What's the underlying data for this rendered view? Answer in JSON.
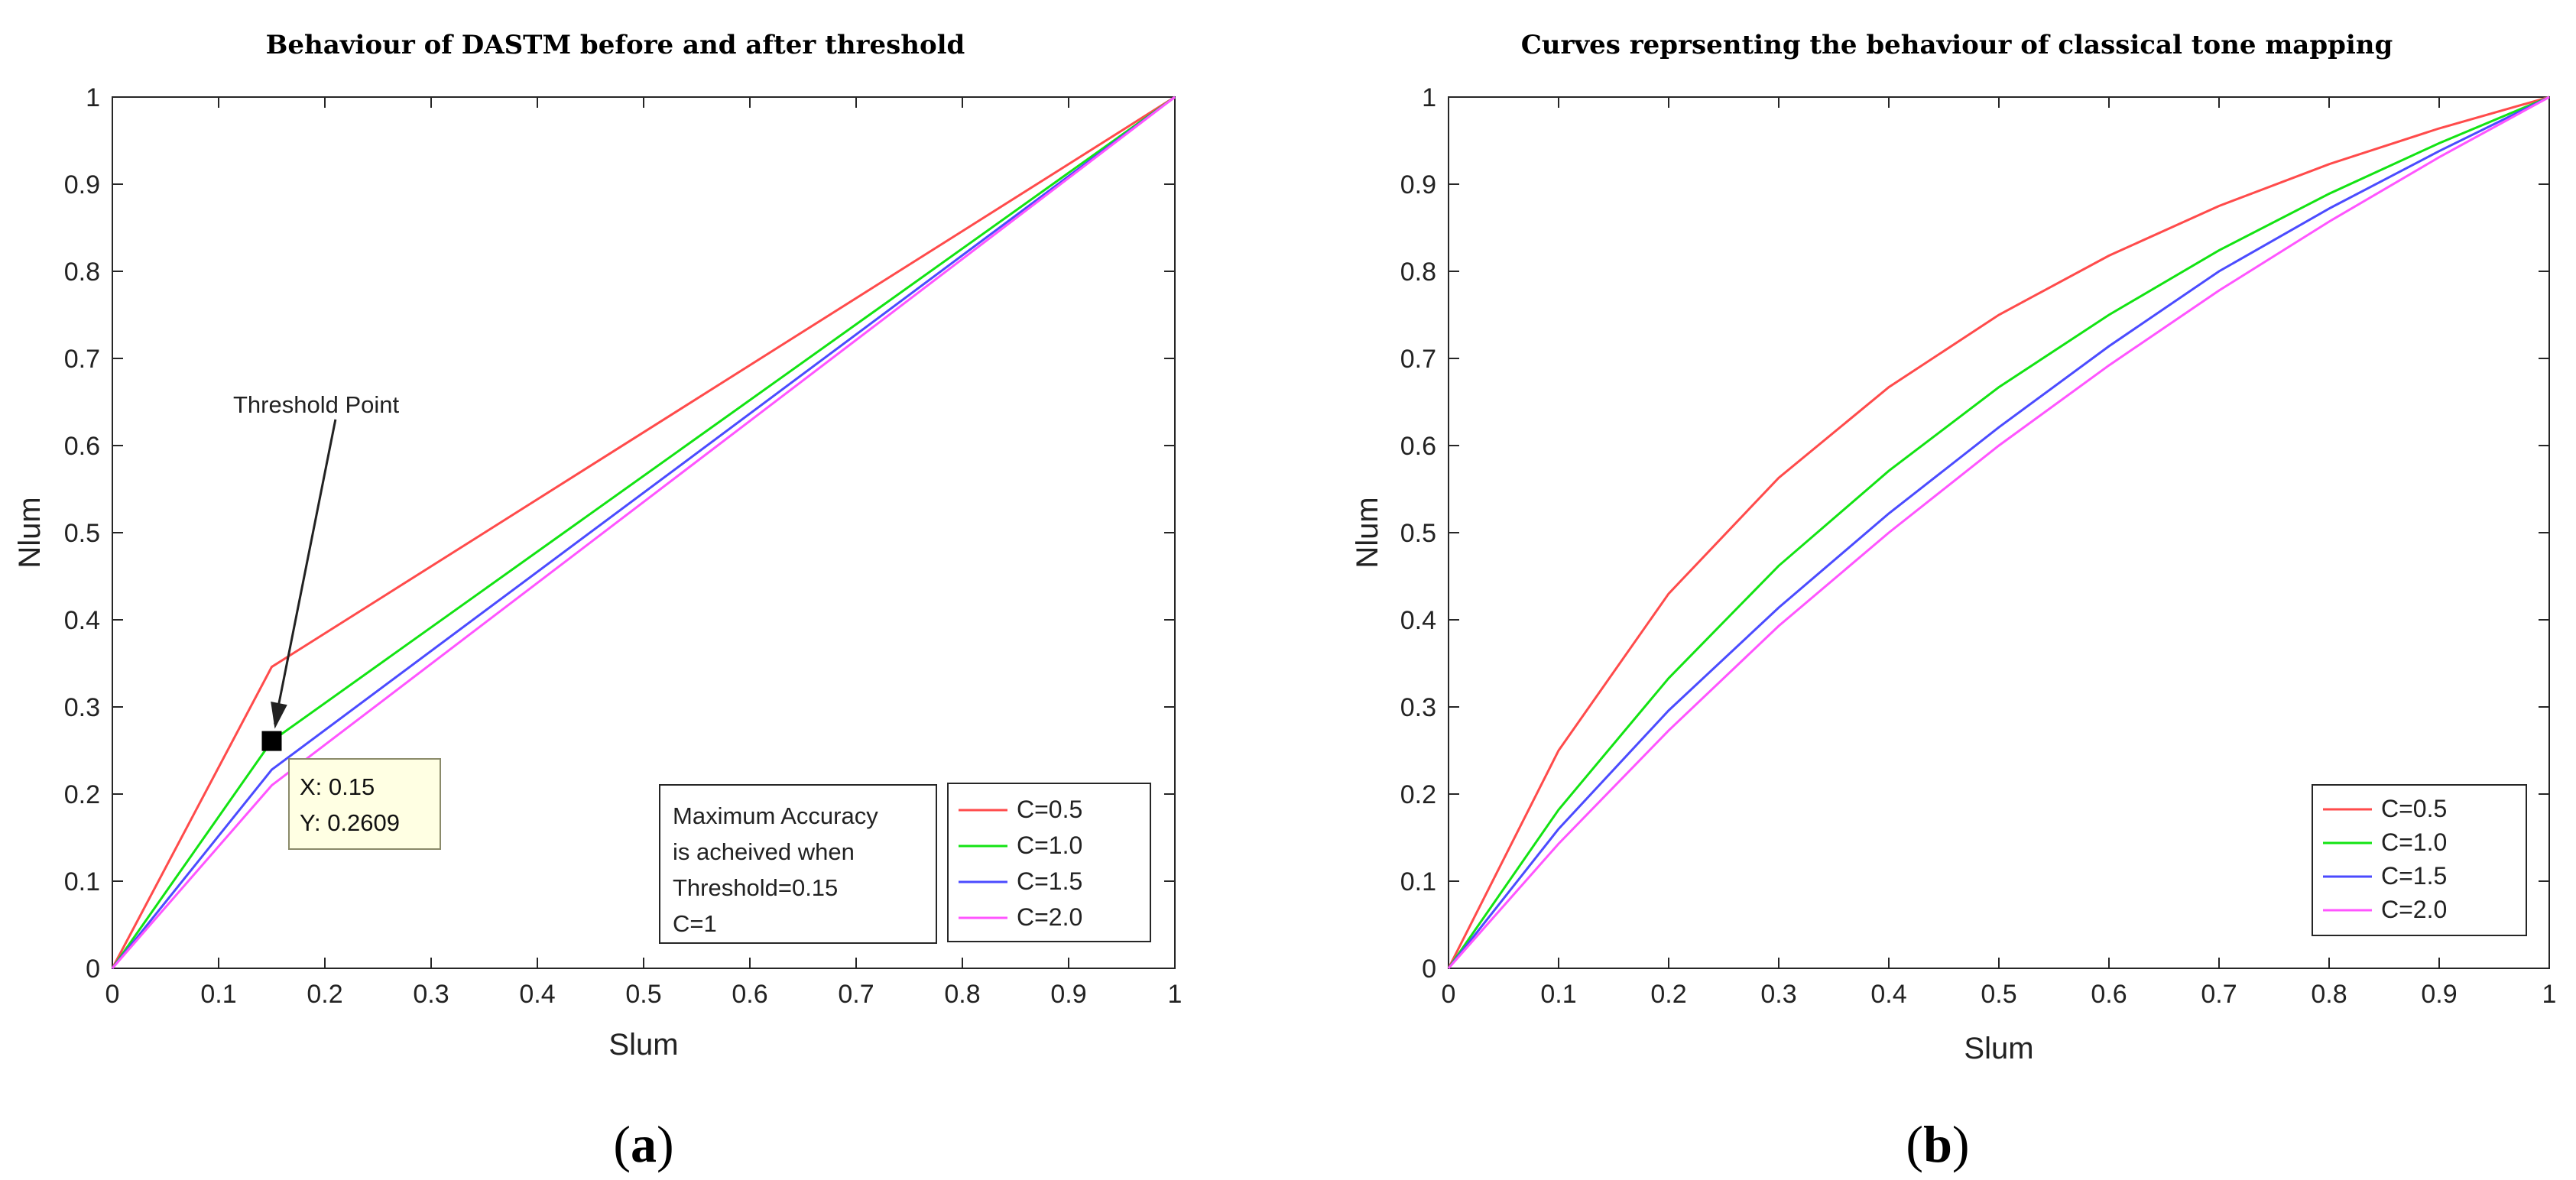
{
  "colors": {
    "series": [
      "#ff4b4b",
      "#13e313",
      "#4b4bff",
      "#ff55ff"
    ],
    "tooltip_bg": "#ffffe3",
    "axis": "#262626",
    "grid_tick": "#262626"
  },
  "panels": [
    {
      "caption_open": "(",
      "caption_letter": "a",
      "caption_close": ")"
    },
    {
      "caption_open": "(",
      "caption_letter": "b",
      "caption_close": ")"
    }
  ],
  "chart_data": [
    {
      "type": "line",
      "title": "Behaviour of DASTM before and after threshold",
      "xlabel": "Slum",
      "ylabel": "Nlum",
      "xlim": [
        0,
        1
      ],
      "ylim": [
        0,
        1
      ],
      "xticks": [
        "0",
        "0.1",
        "0.2",
        "0.3",
        "0.4",
        "0.5",
        "0.6",
        "0.7",
        "0.8",
        "0.9",
        "1"
      ],
      "yticks": [
        "0",
        "0.1",
        "0.2",
        "0.3",
        "0.4",
        "0.5",
        "0.6",
        "0.7",
        "0.8",
        "0.9",
        "1"
      ],
      "legend_position": "bottom-right",
      "series": [
        {
          "name": "C=0.5",
          "x": [
            0,
            0.15,
            1
          ],
          "y": [
            0,
            0.346,
            1
          ]
        },
        {
          "name": "C=1.0",
          "x": [
            0,
            0.15,
            1
          ],
          "y": [
            0,
            0.2609,
            1
          ]
        },
        {
          "name": "C=1.5",
          "x": [
            0,
            0.15,
            1
          ],
          "y": [
            0,
            0.228,
            1
          ]
        },
        {
          "name": "C=2.0",
          "x": [
            0,
            0.15,
            1
          ],
          "y": [
            0,
            0.21,
            1
          ]
        }
      ],
      "annotations": {
        "arrow_label": "Threshold Point",
        "arrow_from": [
          0.21,
          0.63
        ],
        "arrow_to": [
          0.15,
          0.2609
        ],
        "marker": {
          "x": 0.15,
          "y": 0.2609
        },
        "datatip_x": "X: 0.15",
        "datatip_y": "Y: 0.2609",
        "note_lines": [
          "Maximum Accuracy",
          "is acheived when",
          "Threshold=0.15",
          "C=1"
        ]
      }
    },
    {
      "type": "line",
      "title": "Curves reprsenting the behaviour of classical tone mapping",
      "xlabel": "Slum",
      "ylabel": "Nlum",
      "xlim": [
        0,
        1
      ],
      "ylim": [
        0,
        1
      ],
      "xticks": [
        "0",
        "0.1",
        "0.2",
        "0.3",
        "0.4",
        "0.5",
        "0.6",
        "0.7",
        "0.8",
        "0.9",
        "1"
      ],
      "yticks": [
        "0",
        "0.1",
        "0.2",
        "0.3",
        "0.4",
        "0.5",
        "0.6",
        "0.7",
        "0.8",
        "0.9",
        "1"
      ],
      "legend_position": "bottom-right",
      "series": [
        {
          "name": "C=0.5",
          "x": [
            0,
            0.1,
            0.2,
            0.3,
            0.4,
            0.5,
            0.6,
            0.7,
            0.8,
            0.9,
            1
          ],
          "y": [
            0,
            0.25,
            0.43,
            0.563,
            0.667,
            0.75,
            0.818,
            0.875,
            0.923,
            0.964,
            1
          ]
        },
        {
          "name": "C=1.0",
          "x": [
            0,
            0.1,
            0.2,
            0.3,
            0.4,
            0.5,
            0.6,
            0.7,
            0.8,
            0.9,
            1
          ],
          "y": [
            0,
            0.182,
            0.333,
            0.462,
            0.571,
            0.667,
            0.75,
            0.824,
            0.889,
            0.947,
            1
          ]
        },
        {
          "name": "C=1.5",
          "x": [
            0,
            0.1,
            0.2,
            0.3,
            0.4,
            0.5,
            0.6,
            0.7,
            0.8,
            0.9,
            1
          ],
          "y": [
            0,
            0.16,
            0.296,
            0.414,
            0.522,
            0.621,
            0.714,
            0.8,
            0.872,
            0.938,
            1
          ]
        },
        {
          "name": "C=2.0",
          "x": [
            0,
            0.1,
            0.2,
            0.3,
            0.4,
            0.5,
            0.6,
            0.7,
            0.8,
            0.9,
            1
          ],
          "y": [
            0,
            0.143,
            0.273,
            0.393,
            0.5,
            0.6,
            0.692,
            0.778,
            0.857,
            0.931,
            1
          ]
        }
      ]
    }
  ]
}
